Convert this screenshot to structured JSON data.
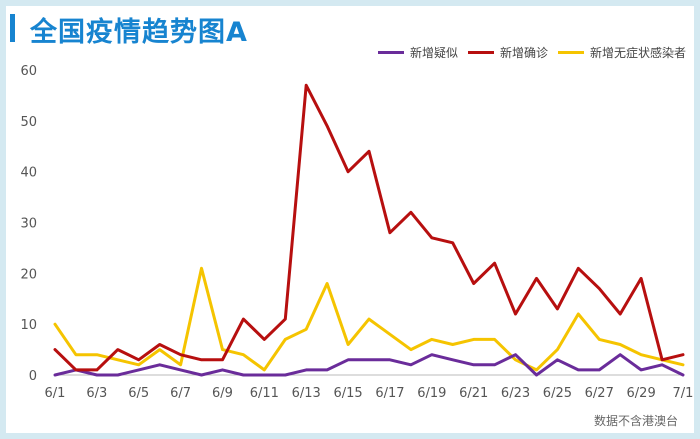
{
  "title": "全国疫情趋势图A",
  "footnote": "数据不含港澳台",
  "colors": {
    "frame": "#d4e9f1",
    "title": "#1784d0",
    "suspected": "#6a2c9a",
    "confirmed": "#b70f0f",
    "asymptomatic": "#f5c400"
  },
  "chart_data": {
    "type": "line",
    "x": [
      "6/1",
      "6/2",
      "6/3",
      "6/4",
      "6/5",
      "6/6",
      "6/7",
      "6/8",
      "6/9",
      "6/10",
      "6/11",
      "6/12",
      "6/13",
      "6/14",
      "6/15",
      "6/16",
      "6/17",
      "6/18",
      "6/19",
      "6/20",
      "6/21",
      "6/22",
      "6/23",
      "6/24",
      "6/25",
      "6/26",
      "6/27",
      "6/28",
      "6/29",
      "6/30",
      "7/1"
    ],
    "x_tick_labels": [
      "6/1",
      "6/3",
      "6/5",
      "6/7",
      "6/9",
      "6/11",
      "6/13",
      "6/15",
      "6/17",
      "6/19",
      "6/21",
      "6/23",
      "6/25",
      "6/27",
      "6/29",
      "7/1"
    ],
    "y_tick_labels": [
      "0",
      "10",
      "20",
      "30",
      "40",
      "50",
      "60"
    ],
    "ylim": [
      0,
      60
    ],
    "grid": false,
    "legend_position": "top-right",
    "series": [
      {
        "name": "新增疑似",
        "color": "#6a2c9a",
        "values": [
          0,
          1,
          0,
          0,
          1,
          2,
          1,
          0,
          1,
          0,
          0,
          0,
          1,
          1,
          3,
          3,
          3,
          2,
          4,
          3,
          2,
          2,
          4,
          0,
          3,
          1,
          1,
          4,
          1,
          2,
          0
        ]
      },
      {
        "name": "新增确诊",
        "color": "#b70f0f",
        "values": [
          5,
          1,
          1,
          5,
          3,
          6,
          4,
          3,
          3,
          11,
          7,
          11,
          57,
          49,
          40,
          44,
          28,
          32,
          27,
          26,
          18,
          22,
          12,
          19,
          13,
          21,
          17,
          12,
          19,
          3,
          4
        ]
      },
      {
        "name": "新增无症状感染者",
        "color": "#f5c400",
        "values": [
          10,
          4,
          4,
          3,
          2,
          5,
          2,
          21,
          5,
          4,
          1,
          7,
          9,
          18,
          6,
          11,
          8,
          5,
          7,
          6,
          7,
          7,
          3,
          1,
          5,
          12,
          7,
          6,
          4,
          3,
          2
        ]
      }
    ]
  }
}
